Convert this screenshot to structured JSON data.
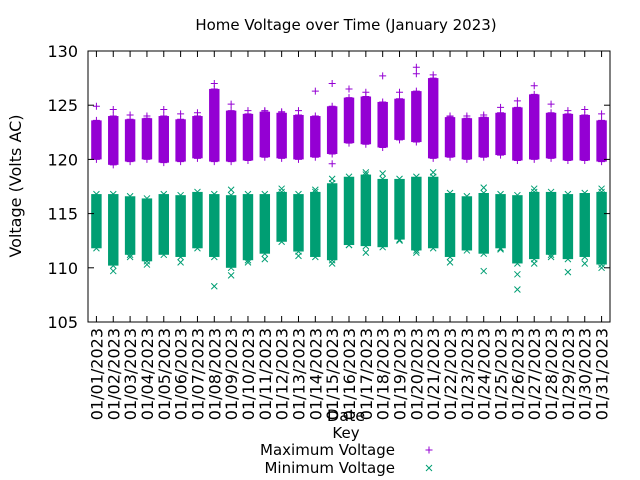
{
  "chart_data": {
    "type": "scatter",
    "title": "Home Voltage over Time (January 2023)",
    "xlabel": "Date",
    "ylabel": "Voltage (Volts AC)",
    "ylim": [
      105,
      130
    ],
    "yticks": [
      105,
      110,
      115,
      120,
      125,
      130
    ],
    "grid": false,
    "legend": {
      "title": "Key",
      "placement": "bottom"
    },
    "categories": [
      "01/01/2023",
      "01/02/2023",
      "01/03/2023",
      "01/04/2023",
      "01/05/2023",
      "01/06/2023",
      "01/07/2023",
      "01/08/2023",
      "01/09/2023",
      "01/10/2023",
      "01/11/2023",
      "01/12/2023",
      "01/13/2023",
      "01/14/2023",
      "01/15/2023",
      "01/16/2023",
      "01/17/2023",
      "01/18/2023",
      "01/19/2023",
      "01/20/2023",
      "01/21/2023",
      "01/22/2023",
      "01/23/2023",
      "01/24/2023",
      "01/25/2023",
      "01/26/2023",
      "01/27/2023",
      "01/28/2023",
      "01/29/2023",
      "01/30/2023",
      "01/31/2023"
    ],
    "series": [
      {
        "name": "Maximum Voltage",
        "marker": "plus",
        "color": "#9400d3",
        "low": [
          120.0,
          119.5,
          119.8,
          120.0,
          119.7,
          119.8,
          120.1,
          119.8,
          119.8,
          119.9,
          120.2,
          120.1,
          120.0,
          120.2,
          120.5,
          121.5,
          121.4,
          121.1,
          121.8,
          121.6,
          120.1,
          120.2,
          120.0,
          120.2,
          120.4,
          119.9,
          120.0,
          120.1,
          119.9,
          119.9,
          119.8
        ],
        "high": [
          123.6,
          124.0,
          123.7,
          123.8,
          124.0,
          123.7,
          124.0,
          126.5,
          124.5,
          124.2,
          124.4,
          124.3,
          124.1,
          124.0,
          124.9,
          125.7,
          125.8,
          125.3,
          125.6,
          126.3,
          127.5,
          123.9,
          123.8,
          123.9,
          124.3,
          124.8,
          126.0,
          124.3,
          124.2,
          124.1,
          123.6
        ],
        "outliers": [
          [
            0,
            124.9
          ],
          [
            1,
            124.6
          ],
          [
            2,
            124.1
          ],
          [
            3,
            124.0
          ],
          [
            4,
            124.6
          ],
          [
            5,
            124.2
          ],
          [
            6,
            124.3
          ],
          [
            7,
            127.0
          ],
          [
            7,
            125.5
          ],
          [
            8,
            125.1
          ],
          [
            9,
            124.5
          ],
          [
            10,
            124.5
          ],
          [
            11,
            124.4
          ],
          [
            12,
            124.5
          ],
          [
            13,
            126.3
          ],
          [
            14,
            127.0
          ],
          [
            14,
            119.6
          ],
          [
            15,
            126.5
          ],
          [
            16,
            126.2
          ],
          [
            17,
            127.7
          ],
          [
            18,
            126.2
          ],
          [
            19,
            128.5
          ],
          [
            19,
            127.9
          ],
          [
            20,
            127.8
          ],
          [
            21,
            124.0
          ],
          [
            22,
            124.0
          ],
          [
            23,
            124.1
          ],
          [
            24,
            124.8
          ],
          [
            25,
            125.4
          ],
          [
            26,
            126.8
          ],
          [
            27,
            125.1
          ],
          [
            28,
            124.5
          ],
          [
            29,
            124.6
          ],
          [
            30,
            124.2
          ]
        ]
      },
      {
        "name": "Minimum Voltage",
        "marker": "cross",
        "color": "#009e73",
        "low": [
          111.8,
          110.2,
          111.2,
          110.6,
          111.2,
          111.0,
          111.8,
          111.0,
          110.0,
          110.7,
          111.3,
          112.4,
          111.5,
          111.0,
          110.7,
          112.1,
          112.0,
          111.9,
          112.6,
          111.6,
          111.8,
          111.0,
          111.6,
          111.3,
          111.8,
          110.4,
          110.8,
          111.2,
          110.8,
          111.0,
          110.3
        ],
        "high": [
          116.8,
          116.8,
          116.6,
          116.4,
          116.8,
          116.7,
          117.0,
          116.8,
          116.7,
          116.8,
          116.8,
          117.0,
          116.8,
          117.0,
          117.8,
          118.4,
          118.6,
          118.2,
          118.2,
          118.4,
          118.4,
          116.9,
          116.6,
          116.9,
          116.8,
          116.7,
          117.0,
          117.0,
          116.8,
          116.9,
          117.0
        ],
        "outliers": [
          [
            0,
            112.3
          ],
          [
            1,
            109.7
          ],
          [
            2,
            111.0
          ],
          [
            3,
            110.3
          ],
          [
            4,
            112.5
          ],
          [
            5,
            110.5
          ],
          [
            6,
            112.1
          ],
          [
            7,
            108.3
          ],
          [
            8,
            109.3
          ],
          [
            8,
            117.2
          ],
          [
            9,
            110.5
          ],
          [
            10,
            110.8
          ],
          [
            11,
            117.3
          ],
          [
            12,
            111.1
          ],
          [
            13,
            117.2
          ],
          [
            14,
            110.4
          ],
          [
            14,
            118.2
          ],
          [
            15,
            112.1
          ],
          [
            16,
            111.4
          ],
          [
            16,
            118.8
          ],
          [
            17,
            112.2
          ],
          [
            17,
            118.7
          ],
          [
            18,
            112.5
          ],
          [
            19,
            111.4
          ],
          [
            20,
            118.8
          ],
          [
            21,
            110.5
          ],
          [
            22,
            111.9
          ],
          [
            23,
            109.7
          ],
          [
            23,
            117.4
          ],
          [
            24,
            111.7
          ],
          [
            25,
            108.0
          ],
          [
            25,
            109.4
          ],
          [
            26,
            110.4
          ],
          [
            26,
            117.3
          ],
          [
            27,
            111.0
          ],
          [
            28,
            109.6
          ],
          [
            29,
            110.4
          ],
          [
            30,
            110.0
          ],
          [
            30,
            117.3
          ]
        ]
      }
    ]
  }
}
